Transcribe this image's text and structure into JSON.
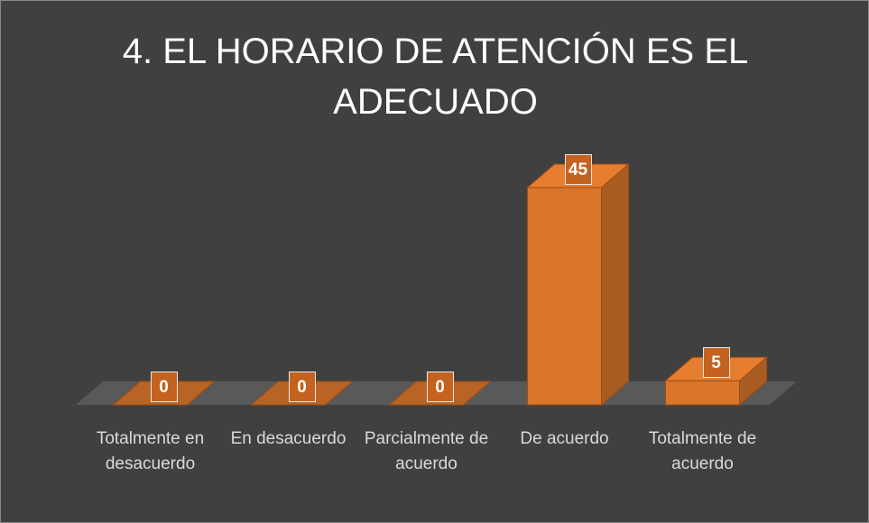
{
  "chart_data": {
    "type": "bar3d",
    "title": "4. EL HORARIO DE ATENCIÓN ES EL ADECUADO",
    "categories": [
      "Totalmente en desacuerdo",
      "En desacuerdo",
      "Parcialmente de acuerdo",
      "De acuerdo",
      "Totalmente de acuerdo"
    ],
    "values": [
      0,
      0,
      0,
      45,
      5
    ],
    "color": "#d9762c"
  }
}
